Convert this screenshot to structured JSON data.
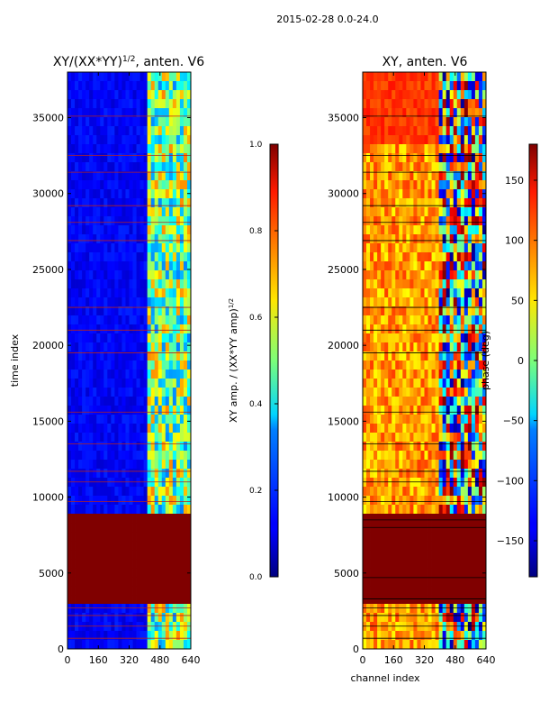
{
  "figure": {
    "suptitle": "2015-02-28 0.0-24.0"
  },
  "colors": {
    "frame": "#000000",
    "hline_left": "#b22222",
    "hline_right": "#000000"
  },
  "chart_data": [
    {
      "type": "heatmap",
      "title": "XY/(XX*YY)",
      "title_sup": "1/2",
      "title_suffix": ", anten. V6",
      "xlabel": "",
      "ylabel": "time index",
      "xlim": [
        0,
        640
      ],
      "ylim": [
        0,
        38000
      ],
      "xticks": [
        0,
        160,
        320,
        480,
        640
      ],
      "yticks": [
        0,
        5000,
        10000,
        15000,
        20000,
        25000,
        30000,
        35000
      ],
      "colormap": "jet",
      "masked_band": [
        3200,
        9100
      ],
      "active_channels": [
        410,
        640
      ],
      "horizontal_lines": [
        700,
        1500,
        2200,
        2700,
        9700,
        11000,
        11700,
        13500,
        15600,
        19500,
        21000,
        22500,
        26900,
        28100,
        29200,
        31400,
        32500,
        35100
      ],
      "colorbar": {
        "label": "XY amp. / (XX*YY amp)",
        "label_sup": "1/2",
        "range": [
          0.0,
          1.0
        ],
        "ticks": [
          "0.0",
          "0.2",
          "0.4",
          "0.6",
          "0.8",
          "1.0"
        ]
      }
    },
    {
      "type": "heatmap",
      "title": "XY, anten. V6",
      "xlabel": "channel index",
      "ylabel": "",
      "xlim": [
        0,
        640
      ],
      "ylim": [
        0,
        38000
      ],
      "xticks": [
        0,
        160,
        320,
        480,
        640
      ],
      "yticks": [
        0,
        5000,
        10000,
        15000,
        20000,
        25000,
        30000,
        35000
      ],
      "colormap": "jet",
      "masked_band": [
        3200,
        9100
      ],
      "active_channels": [
        400,
        640
      ],
      "horizontal_lines": [
        700,
        1500,
        2200,
        2700,
        3300,
        4700,
        8000,
        8500,
        9700,
        11000,
        11700,
        13500,
        15600,
        19500,
        21000,
        22500,
        26900,
        28100,
        29200,
        31400,
        32500,
        35100
      ],
      "colorbar": {
        "label": "phase (deg)",
        "range": [
          -180,
          180
        ],
        "ticks": [
          "−150",
          "−100",
          "−50",
          "0",
          "50",
          "100",
          "150"
        ],
        "tick_values": [
          -150,
          -100,
          -50,
          0,
          50,
          100,
          150
        ]
      }
    }
  ]
}
